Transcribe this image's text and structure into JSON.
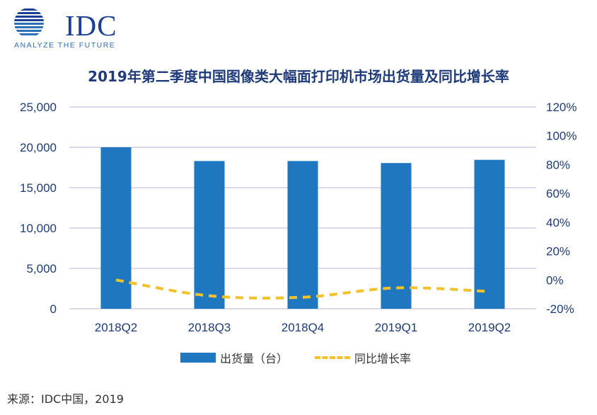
{
  "logo": {
    "text": "IDC",
    "tagline": "ANALYZE THE FUTURE",
    "brand_color": "#1b3f93"
  },
  "chart_data": {
    "type": "bar",
    "title": "2019年第二季度中国图像类大幅面打印机市场出货量及同比增长率",
    "categories": [
      "2018Q2",
      "2018Q3",
      "2018Q4",
      "2019Q1",
      "2019Q2"
    ],
    "series": [
      {
        "name": "出货量（台）",
        "type": "bar",
        "axis": "left",
        "color": "#1f77c0",
        "values": [
          20000,
          18300,
          18300,
          18050,
          18450
        ]
      },
      {
        "name": "同比增长率",
        "type": "line",
        "style": "dashed",
        "axis": "right",
        "color": "#f2c12e",
        "values": [
          0,
          -11,
          -12,
          -5.5,
          -8
        ]
      }
    ],
    "y_left": {
      "min": 0,
      "max": 25000,
      "ticks": [
        "0",
        "5,000",
        "10,000",
        "15,000",
        "20,000",
        "25,000"
      ]
    },
    "y_right": {
      "min": -20,
      "max": 120,
      "ticks": [
        "-20%",
        "0%",
        "20%",
        "40%",
        "60%",
        "80%",
        "100%",
        "120%"
      ]
    },
    "grid": true,
    "legend_position": "bottom"
  },
  "source": "来源：IDC中国，2019"
}
